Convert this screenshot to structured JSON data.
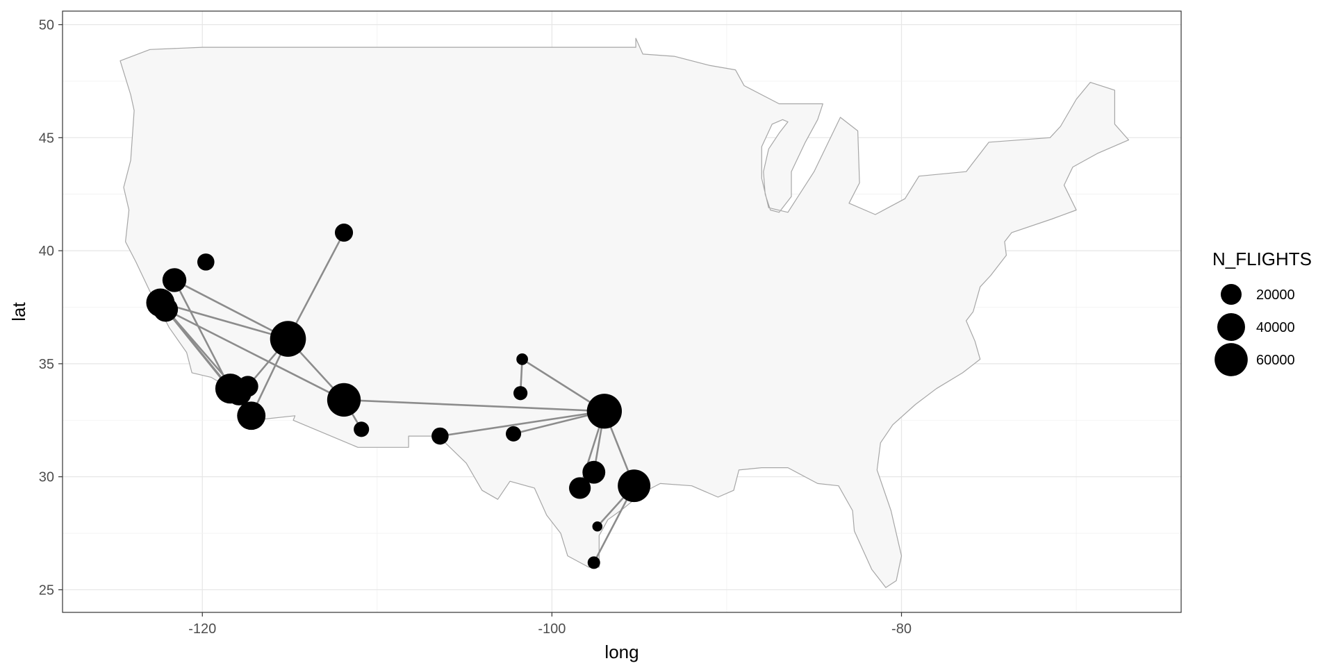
{
  "chart_data": {
    "type": "scatter",
    "subtype": "map-flight-routes",
    "title": "",
    "xlabel": "long",
    "ylabel": "lat",
    "xlim": [
      -128,
      -64
    ],
    "ylim": [
      24,
      50.6
    ],
    "x_ticks": [
      -120,
      -100,
      -80
    ],
    "y_ticks": [
      25,
      30,
      35,
      40,
      45,
      50
    ],
    "grid": true,
    "background": "#ffffff",
    "land_fill": "#f7f7f7",
    "land_stroke": "#a6a6a6",
    "point_color": "#000000",
    "route_color": "#8c8c8c",
    "legend": {
      "title": "N_FLIGHTS",
      "position": "right",
      "entries": [
        {
          "label": "20000",
          "value": 20000
        },
        {
          "label": "40000",
          "value": 40000
        },
        {
          "label": "60000",
          "value": 60000
        }
      ]
    },
    "airports": [
      {
        "lon": -111.9,
        "lat": 40.8,
        "n_flights": 14000
      },
      {
        "lon": -119.8,
        "lat": 39.5,
        "n_flights": 12000
      },
      {
        "lon": -121.6,
        "lat": 38.7,
        "n_flights": 28000
      },
      {
        "lon": -122.4,
        "lat": 37.7,
        "n_flights": 42000
      },
      {
        "lon": -122.1,
        "lat": 37.4,
        "n_flights": 30000
      },
      {
        "lon": -115.1,
        "lat": 36.1,
        "n_flights": 72000
      },
      {
        "lon": -118.4,
        "lat": 33.9,
        "n_flights": 48000
      },
      {
        "lon": -117.9,
        "lat": 33.7,
        "n_flights": 30000
      },
      {
        "lon": -117.4,
        "lat": 34.0,
        "n_flights": 20000
      },
      {
        "lon": -117.2,
        "lat": 32.7,
        "n_flights": 42000
      },
      {
        "lon": -111.9,
        "lat": 33.4,
        "n_flights": 62000
      },
      {
        "lon": -110.9,
        "lat": 32.1,
        "n_flights": 9000
      },
      {
        "lon": -106.4,
        "lat": 31.8,
        "n_flights": 12000
      },
      {
        "lon": -101.7,
        "lat": 35.2,
        "n_flights": 4000
      },
      {
        "lon": -101.8,
        "lat": 33.7,
        "n_flights": 7000
      },
      {
        "lon": -102.2,
        "lat": 31.9,
        "n_flights": 9000
      },
      {
        "lon": -97.0,
        "lat": 32.9,
        "n_flights": 68000
      },
      {
        "lon": -97.6,
        "lat": 30.2,
        "n_flights": 25000
      },
      {
        "lon": -98.4,
        "lat": 29.5,
        "n_flights": 22000
      },
      {
        "lon": -95.3,
        "lat": 29.6,
        "n_flights": 58000
      },
      {
        "lon": -97.4,
        "lat": 27.8,
        "n_flights": 2500
      },
      {
        "lon": -97.6,
        "lat": 26.2,
        "n_flights": 5000
      }
    ],
    "routes": [
      {
        "from": [
          -115.1,
          36.1
        ],
        "to": [
          -111.9,
          40.8
        ]
      },
      {
        "from": [
          -115.1,
          36.1
        ],
        "to": [
          -121.6,
          38.7
        ]
      },
      {
        "from": [
          -115.1,
          36.1
        ],
        "to": [
          -122.4,
          37.7
        ]
      },
      {
        "from": [
          -115.1,
          36.1
        ],
        "to": [
          -117.2,
          32.7
        ]
      },
      {
        "from": [
          -115.1,
          36.1
        ],
        "to": [
          -117.4,
          34.0
        ]
      },
      {
        "from": [
          -115.1,
          36.1
        ],
        "to": [
          -111.9,
          33.4
        ]
      },
      {
        "from": [
          -121.6,
          38.7
        ],
        "to": [
          -118.4,
          33.9
        ]
      },
      {
        "from": [
          -122.4,
          37.7
        ],
        "to": [
          -118.4,
          33.9
        ]
      },
      {
        "from": [
          -122.4,
          37.7
        ],
        "to": [
          -117.9,
          33.7
        ]
      },
      {
        "from": [
          -122.1,
          37.4
        ],
        "to": [
          -117.2,
          32.7
        ]
      },
      {
        "from": [
          -122.1,
          37.4
        ],
        "to": [
          -111.9,
          33.4
        ]
      },
      {
        "from": [
          -111.9,
          33.4
        ],
        "to": [
          -110.9,
          32.1
        ]
      },
      {
        "from": [
          -111.9,
          33.4
        ],
        "to": [
          -97.0,
          32.9
        ]
      },
      {
        "from": [
          -106.4,
          31.8
        ],
        "to": [
          -97.0,
          32.9
        ]
      },
      {
        "from": [
          -102.2,
          31.9
        ],
        "to": [
          -97.0,
          32.9
        ]
      },
      {
        "from": [
          -101.7,
          35.2
        ],
        "to": [
          -97.0,
          32.9
        ]
      },
      {
        "from": [
          -101.7,
          35.2
        ],
        "to": [
          -101.8,
          33.7
        ]
      },
      {
        "from": [
          -97.0,
          32.9
        ],
        "to": [
          -97.6,
          30.2
        ]
      },
      {
        "from": [
          -97.0,
          32.9
        ],
        "to": [
          -98.4,
          29.5
        ]
      },
      {
        "from": [
          -97.0,
          32.9
        ],
        "to": [
          -95.3,
          29.6
        ]
      },
      {
        "from": [
          -95.3,
          29.6
        ],
        "to": [
          -97.4,
          27.8
        ]
      },
      {
        "from": [
          -95.3,
          29.6
        ],
        "to": [
          -97.6,
          26.2
        ]
      }
    ],
    "land_outline": [
      [
        -124.7,
        48.4
      ],
      [
        -123.0,
        48.9
      ],
      [
        -120.0,
        49.0
      ],
      [
        -110.0,
        49.0
      ],
      [
        -105.0,
        49.0
      ],
      [
        -100.0,
        49.0
      ],
      [
        -95.2,
        49.0
      ],
      [
        -95.2,
        49.4
      ],
      [
        -94.8,
        48.7
      ],
      [
        -93.0,
        48.6
      ],
      [
        -91.0,
        48.2
      ],
      [
        -89.5,
        48.0
      ],
      [
        -89.0,
        47.3
      ],
      [
        -87.0,
        46.5
      ],
      [
        -84.5,
        46.5
      ],
      [
        -84.8,
        45.8
      ],
      [
        -85.5,
        44.8
      ],
      [
        -86.3,
        43.5
      ],
      [
        -86.3,
        42.4
      ],
      [
        -87.0,
        41.7
      ],
      [
        -87.5,
        41.8
      ],
      [
        -87.8,
        42.5
      ],
      [
        -87.9,
        43.5
      ],
      [
        -87.6,
        44.5
      ],
      [
        -87.0,
        45.2
      ],
      [
        -86.5,
        45.7
      ],
      [
        -86.8,
        45.8
      ],
      [
        -87.4,
        45.6
      ],
      [
        -88.0,
        44.6
      ],
      [
        -88.0,
        43.2
      ],
      [
        -87.6,
        41.9
      ],
      [
        -86.5,
        41.7
      ],
      [
        -85.0,
        43.5
      ],
      [
        -83.5,
        45.9
      ],
      [
        -82.5,
        45.3
      ],
      [
        -82.4,
        43.0
      ],
      [
        -83.0,
        42.1
      ],
      [
        -81.5,
        41.6
      ],
      [
        -79.8,
        42.3
      ],
      [
        -79.0,
        43.3
      ],
      [
        -76.3,
        43.5
      ],
      [
        -75.0,
        44.8
      ],
      [
        -71.5,
        45.0
      ],
      [
        -70.9,
        45.5
      ],
      [
        -70.0,
        46.7
      ],
      [
        -69.2,
        47.45
      ],
      [
        -67.8,
        47.1
      ],
      [
        -67.8,
        45.6
      ],
      [
        -67.0,
        44.9
      ],
      [
        -68.8,
        44.3
      ],
      [
        -70.2,
        43.7
      ],
      [
        -70.7,
        42.9
      ],
      [
        -70.0,
        41.8
      ],
      [
        -71.4,
        41.4
      ],
      [
        -73.7,
        40.8
      ],
      [
        -74.1,
        40.4
      ],
      [
        -74.0,
        39.8
      ],
      [
        -74.9,
        38.9
      ],
      [
        -75.5,
        38.4
      ],
      [
        -75.9,
        37.3
      ],
      [
        -76.3,
        36.9
      ],
      [
        -75.8,
        36.0
      ],
      [
        -75.5,
        35.2
      ],
      [
        -76.5,
        34.6
      ],
      [
        -78.0,
        33.9
      ],
      [
        -79.2,
        33.2
      ],
      [
        -80.5,
        32.3
      ],
      [
        -81.2,
        31.5
      ],
      [
        -81.4,
        30.3
      ],
      [
        -80.6,
        28.5
      ],
      [
        -80.0,
        26.5
      ],
      [
        -80.3,
        25.4
      ],
      [
        -80.9,
        25.1
      ],
      [
        -81.7,
        25.9
      ],
      [
        -82.7,
        27.6
      ],
      [
        -82.8,
        28.5
      ],
      [
        -83.6,
        29.6
      ],
      [
        -84.8,
        29.7
      ],
      [
        -86.5,
        30.4
      ],
      [
        -88.0,
        30.4
      ],
      [
        -89.3,
        30.3
      ],
      [
        -89.6,
        29.4
      ],
      [
        -90.5,
        29.1
      ],
      [
        -92.0,
        29.6
      ],
      [
        -93.8,
        29.7
      ],
      [
        -94.8,
        29.3
      ],
      [
        -95.9,
        28.6
      ],
      [
        -96.8,
        28.1
      ],
      [
        -97.3,
        27.4
      ],
      [
        -97.3,
        26.0
      ],
      [
        -97.9,
        26.0
      ],
      [
        -99.1,
        26.5
      ],
      [
        -99.5,
        27.5
      ],
      [
        -100.3,
        28.3
      ],
      [
        -101.0,
        29.5
      ],
      [
        -102.4,
        29.8
      ],
      [
        -103.1,
        29.0
      ],
      [
        -104.0,
        29.4
      ],
      [
        -104.9,
        30.6
      ],
      [
        -106.5,
        31.8
      ],
      [
        -108.2,
        31.8
      ],
      [
        -108.2,
        31.3
      ],
      [
        -111.1,
        31.3
      ],
      [
        -114.8,
        32.5
      ],
      [
        -114.7,
        32.7
      ],
      [
        -117.1,
        32.5
      ],
      [
        -117.3,
        33.2
      ],
      [
        -118.4,
        33.9
      ],
      [
        -119.5,
        34.4
      ],
      [
        -120.6,
        34.6
      ],
      [
        -120.9,
        35.5
      ],
      [
        -121.9,
        36.6
      ],
      [
        -122.5,
        37.5
      ],
      [
        -123.0,
        38.2
      ],
      [
        -123.8,
        39.5
      ],
      [
        -124.4,
        40.4
      ],
      [
        -124.2,
        41.8
      ],
      [
        -124.5,
        42.8
      ],
      [
        -124.1,
        44.0
      ],
      [
        -123.9,
        46.2
      ],
      [
        -124.1,
        46.9
      ],
      [
        -124.7,
        48.4
      ]
    ]
  }
}
